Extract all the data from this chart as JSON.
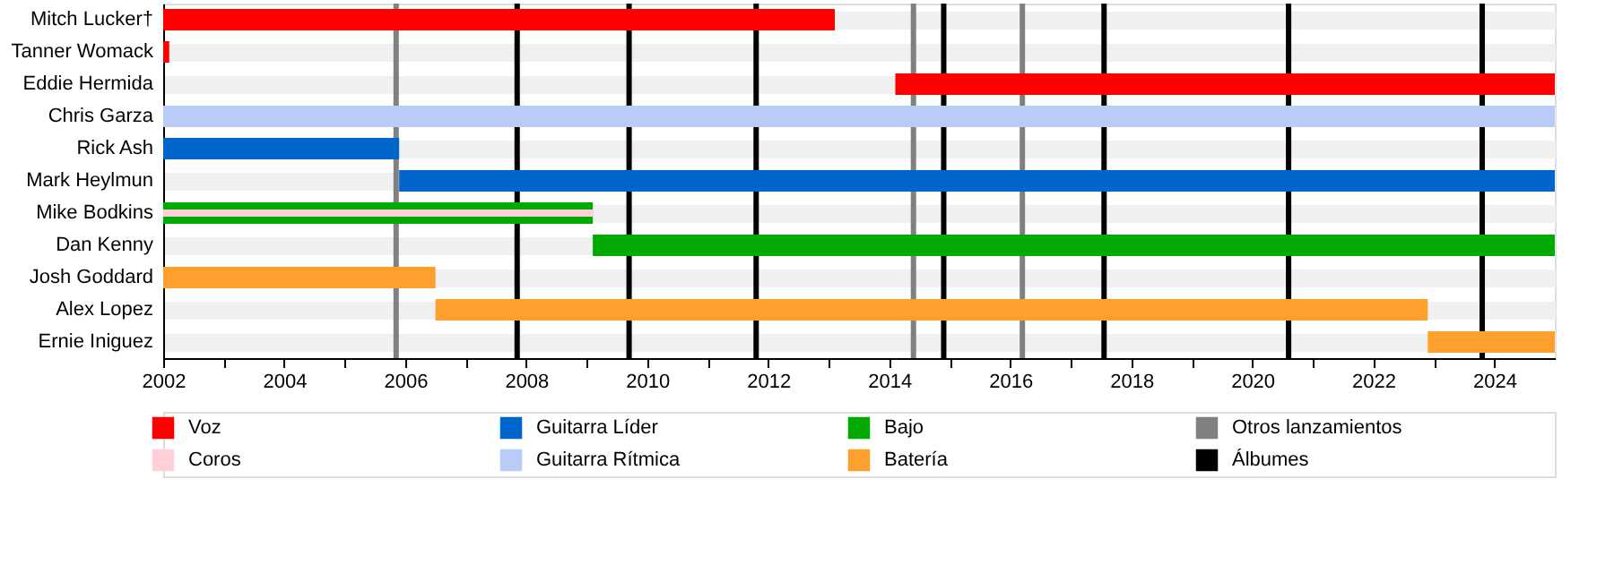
{
  "chart_data": {
    "type": "bar",
    "orientation": "horizontal",
    "categories": [
      "Mitch Lucker†",
      "Tanner Womack",
      "Eddie Hermida",
      "Chris Garza",
      "Rick Ash",
      "Mark Heylmun",
      "Mike Bodkins",
      "Dan Kenny",
      "Josh Goddard",
      "Alex Lopez",
      "Ernie Iniguez"
    ],
    "series": [
      {
        "name": "Voz",
        "color": "#ff0000",
        "base": [
          2002,
          2002,
          2014.1,
          null,
          null,
          null,
          null,
          null,
          null,
          null,
          null
        ],
        "values": [
          11.1,
          0.1,
          10.9,
          null,
          null,
          null,
          null,
          null,
          null,
          null,
          null
        ]
      },
      {
        "name": "Coros",
        "color": "#ffd0d8",
        "base": [
          null,
          null,
          null,
          null,
          null,
          null,
          2002,
          null,
          null,
          null,
          null
        ],
        "values": [
          null,
          null,
          null,
          null,
          null,
          null,
          7.1,
          null,
          null,
          null,
          null
        ]
      },
      {
        "name": "Guitarra Líder",
        "color": "#0066cc",
        "base": [
          null,
          null,
          null,
          null,
          2002,
          2005.9,
          null,
          null,
          null,
          null,
          null
        ],
        "values": [
          null,
          null,
          null,
          null,
          3.9,
          19.1,
          null,
          null,
          null,
          null,
          null
        ]
      },
      {
        "name": "Guitarra Rítmica",
        "color": "#b9cbf7",
        "base": [
          null,
          null,
          null,
          2002,
          null,
          null,
          null,
          null,
          null,
          null,
          null
        ],
        "values": [
          null,
          null,
          null,
          23,
          null,
          null,
          null,
          null,
          null,
          null,
          null
        ]
      },
      {
        "name": "Bajo",
        "color": "#00aa00",
        "base": [
          null,
          null,
          null,
          null,
          null,
          null,
          2002,
          2009.1,
          null,
          null,
          null
        ],
        "values": [
          null,
          null,
          null,
          null,
          null,
          null,
          7.1,
          15.9,
          null,
          null,
          null
        ]
      },
      {
        "name": "Batería",
        "color": "#ffa02e",
        "base": [
          null,
          null,
          null,
          null,
          null,
          null,
          null,
          null,
          2002,
          2006.5,
          2022.9
        ],
        "values": [
          null,
          null,
          null,
          null,
          null,
          null,
          null,
          null,
          4.5,
          16.4,
          2.1
        ]
      }
    ],
    "ref_lines": [
      {
        "axis": "x",
        "value": 2005.85,
        "label": "Otros lanzamientos",
        "color": "#808080"
      },
      {
        "axis": "x",
        "value": 2007.85,
        "label": "Álbumes",
        "color": "#000000"
      },
      {
        "axis": "x",
        "value": 2009.7,
        "color": "#000000"
      },
      {
        "axis": "x",
        "value": 2011.8,
        "color": "#000000"
      },
      {
        "axis": "x",
        "value": 2014.4,
        "color": "#808080"
      },
      {
        "axis": "x",
        "value": 2014.9,
        "color": "#000000"
      },
      {
        "axis": "x",
        "value": 2016.2,
        "color": "#808080"
      },
      {
        "axis": "x",
        "value": 2017.55,
        "color": "#000000"
      },
      {
        "axis": "x",
        "value": 2020.6,
        "color": "#000000"
      },
      {
        "axis": "x",
        "value": 2023.8,
        "color": "#000000"
      }
    ],
    "xlim": [
      2002,
      2025
    ],
    "xticks": [
      2002,
      {
        "value": 2003,
        "label": null
      },
      2004,
      {
        "value": 2005,
        "label": null
      },
      2006,
      {
        "value": 2007,
        "label": null
      },
      2008,
      {
        "value": 2009,
        "label": null
      },
      2010,
      {
        "value": 2011,
        "label": null
      },
      2012,
      {
        "value": 2013,
        "label": null
      },
      2014,
      {
        "value": 2015,
        "label": null
      },
      2016,
      {
        "value": 2017,
        "label": null
      },
      2018,
      {
        "value": 2019,
        "label": null
      },
      2020,
      {
        "value": 2021,
        "label": null
      },
      2022,
      {
        "value": 2023,
        "label": null
      },
      2024
    ],
    "grid": "y",
    "legend": "bottom"
  }
}
